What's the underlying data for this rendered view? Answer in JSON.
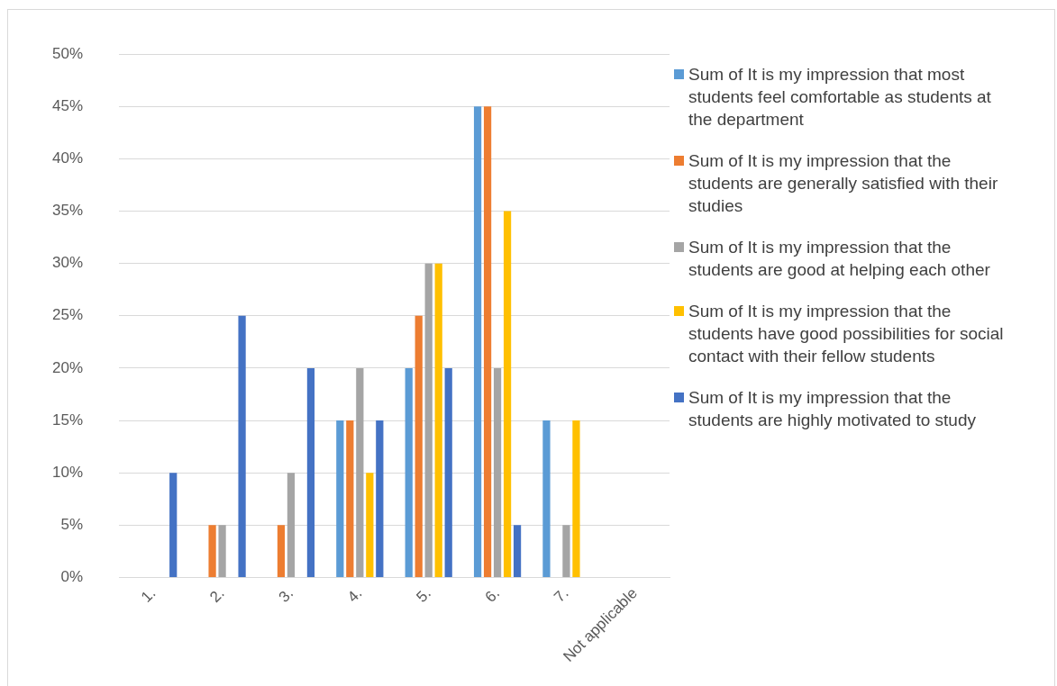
{
  "chart_data": {
    "type": "bar",
    "categories": [
      "1.",
      "2.",
      "3.",
      "4.",
      "5.",
      "6.",
      "7.",
      "Not applicable"
    ],
    "series": [
      {
        "name": "Sum of It is my impression that most students feel comfortable as students at the department",
        "color": "#5b9bd5",
        "values": [
          0,
          0,
          0,
          15,
          20,
          45,
          15,
          0
        ]
      },
      {
        "name": "Sum of It is my impression that the students are generally satisfied with their studies",
        "color": "#ed7d31",
        "values": [
          0,
          5,
          5,
          15,
          25,
          45,
          0,
          0
        ]
      },
      {
        "name": "Sum of It is my impression that the students are good at helping each other",
        "color": "#a5a5a5",
        "values": [
          0,
          5,
          10,
          20,
          30,
          20,
          5,
          0
        ]
      },
      {
        "name": "Sum of It is my impression that the students have good possibilities for social contact with their fellow students",
        "color": "#ffc000",
        "values": [
          0,
          0,
          0,
          10,
          30,
          35,
          15,
          0
        ]
      },
      {
        "name": "Sum of It is my impression that the students are highly motivated to study",
        "color": "#4472c4",
        "values": [
          10,
          25,
          20,
          15,
          20,
          5,
          0,
          0
        ]
      }
    ],
    "ylim": [
      0,
      50
    ],
    "yticks": [
      {
        "value": 0,
        "label": "0%"
      },
      {
        "value": 5,
        "label": "5%"
      },
      {
        "value": 10,
        "label": "10%"
      },
      {
        "value": 15,
        "label": "15%"
      },
      {
        "value": 20,
        "label": "20%"
      },
      {
        "value": 25,
        "label": "25%"
      },
      {
        "value": 30,
        "label": "30%"
      },
      {
        "value": 35,
        "label": "35%"
      },
      {
        "value": 40,
        "label": "40%"
      },
      {
        "value": 45,
        "label": "45%"
      },
      {
        "value": 50,
        "label": "50%"
      }
    ],
    "grid": "y",
    "legend": "right"
  }
}
